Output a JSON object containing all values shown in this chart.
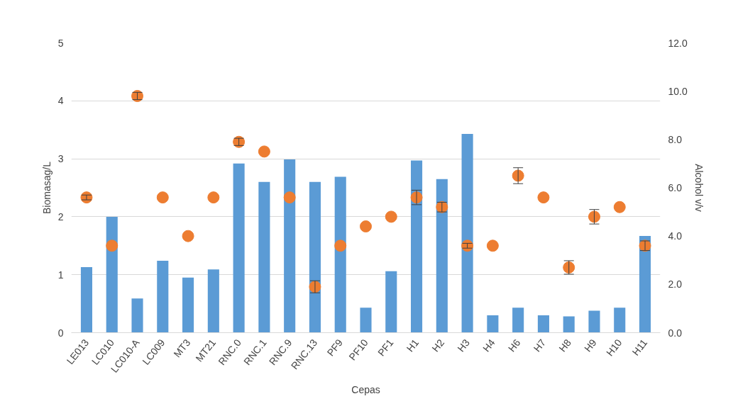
{
  "chart_data": {
    "type": "bar",
    "xlabel": "Cepas",
    "ylabel": "Biomasag/L",
    "y2label": "Alcohol v/v",
    "categories": [
      "LE013",
      "LC010",
      "LC010-A",
      "LC009",
      "MT3",
      "MT21",
      "RNC.0",
      "RNC.1",
      "RNC.9",
      "RNC.13",
      "PF9",
      "PF10",
      "PF1",
      "H1",
      "H2",
      "H3",
      "H4",
      "H6",
      "H7",
      "H8",
      "H9",
      "H10",
      "H11"
    ],
    "series": [
      {
        "color": "#5b9bd5",
        "values": [
          1.13,
          2.0,
          0.59,
          1.24,
          0.95,
          1.09,
          2.92,
          2.6,
          2.99,
          2.6,
          2.69,
          0.43,
          1.06,
          2.97,
          2.65,
          3.43,
          0.3,
          0.43,
          0.3,
          0.28,
          0.38,
          0.43,
          1.67
        ]
      },
      {
        "type": "scatter",
        "axis": "y2",
        "color": "#ed7d31",
        "marker": "circle",
        "values": [
          5.6,
          3.6,
          9.8,
          5.6,
          4.0,
          5.6,
          7.9,
          7.5,
          5.6,
          1.9,
          3.6,
          4.4,
          4.8,
          5.6,
          5.2,
          3.6,
          3.6,
          6.5,
          5.6,
          2.7,
          4.8,
          5.2,
          3.6
        ],
        "errors": [
          0.1,
          null,
          0.15,
          null,
          null,
          null,
          0.15,
          null,
          null,
          0.25,
          null,
          null,
          null,
          0.3,
          0.2,
          0.1,
          null,
          0.33,
          null,
          0.28,
          0.3,
          null,
          0.2
        ]
      }
    ],
    "ylim": [
      0,
      5
    ],
    "yticks": [
      0,
      1,
      2,
      3,
      4,
      5
    ],
    "y2lim": [
      0,
      12
    ],
    "y2ticks": [
      {
        "value": 0,
        "label": "0.0"
      },
      {
        "value": 2,
        "label": "2.0"
      },
      {
        "value": 4,
        "label": "4.0"
      },
      {
        "value": 6,
        "label": "6.0"
      },
      {
        "value": 8,
        "label": "8.0"
      },
      {
        "value": 10,
        "label": "10.0"
      },
      {
        "value": 12,
        "label": "12.0"
      }
    ],
    "grid": "y"
  }
}
